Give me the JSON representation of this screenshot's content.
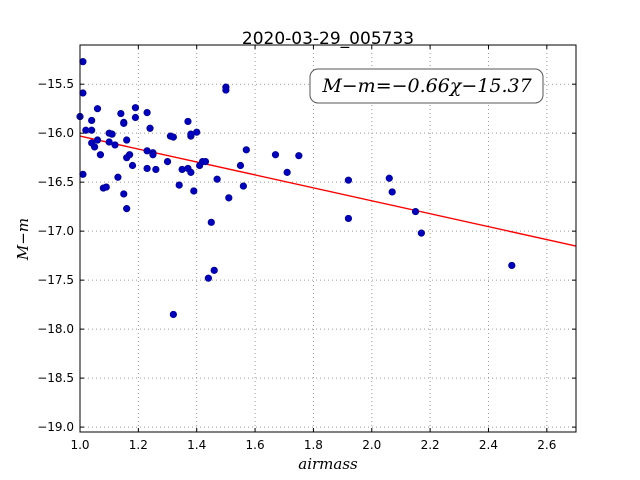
{
  "chart_data": {
    "type": "scatter",
    "title": "2020-03-29_005733",
    "xlabel": "airmass",
    "ylabel": "M−m",
    "xlim": [
      1.0,
      2.7
    ],
    "ylim": [
      -19.05,
      -15.1
    ],
    "y_inverted": false,
    "grid": true,
    "x_ticks": [
      1.0,
      1.2,
      1.4,
      1.6,
      1.8,
      2.0,
      2.2,
      2.4,
      2.6
    ],
    "x_tick_labels": [
      "1.0",
      "1.2",
      "1.4",
      "1.6",
      "1.8",
      "2.0",
      "2.2",
      "2.4",
      "2.6"
    ],
    "y_ticks": [
      -15.5,
      -16.0,
      -16.5,
      -17.0,
      -17.5,
      -18.0,
      -18.5,
      -19.0
    ],
    "y_tick_labels": [
      "−15.5",
      "−16.0",
      "−16.5",
      "−17.0",
      "−17.5",
      "−18.0",
      "−18.5",
      "−19.0"
    ],
    "annotation": "M−m=−0.66χ−15.37",
    "fit": {
      "slope": -0.66,
      "intercept": -15.37
    },
    "colors": {
      "points": "#0000bf",
      "fit_line": "#ff0000",
      "grid": "#9a9a9a"
    },
    "points": [
      [
        1.0,
        -15.83
      ],
      [
        1.01,
        -16.42
      ],
      [
        1.01,
        -15.27
      ],
      [
        1.01,
        -15.59
      ],
      [
        1.02,
        -15.97
      ],
      [
        1.04,
        -15.87
      ],
      [
        1.04,
        -15.97
      ],
      [
        1.04,
        -16.1
      ],
      [
        1.05,
        -16.14
      ],
      [
        1.06,
        -15.75
      ],
      [
        1.06,
        -16.07
      ],
      [
        1.07,
        -16.22
      ],
      [
        1.08,
        -16.56
      ],
      [
        1.09,
        -16.55
      ],
      [
        1.1,
        -16.0
      ],
      [
        1.1,
        -16.09
      ],
      [
        1.11,
        -16.01
      ],
      [
        1.12,
        -16.12
      ],
      [
        1.13,
        -16.45
      ],
      [
        1.14,
        -15.8
      ],
      [
        1.15,
        -15.89
      ],
      [
        1.15,
        -15.9
      ],
      [
        1.15,
        -16.62
      ],
      [
        1.16,
        -16.07
      ],
      [
        1.16,
        -16.25
      ],
      [
        1.17,
        -16.22
      ],
      [
        1.18,
        -16.33
      ],
      [
        1.19,
        -15.74
      ],
      [
        1.19,
        -15.84
      ],
      [
        1.16,
        -16.77
      ],
      [
        1.23,
        -15.79
      ],
      [
        1.23,
        -16.18
      ],
      [
        1.23,
        -16.36
      ],
      [
        1.24,
        -15.95
      ],
      [
        1.25,
        -16.2
      ],
      [
        1.25,
        -16.22
      ],
      [
        1.26,
        -16.37
      ],
      [
        1.3,
        -16.29
      ],
      [
        1.31,
        -16.03
      ],
      [
        1.32,
        -16.04
      ],
      [
        1.32,
        -17.85
      ],
      [
        1.34,
        -16.53
      ],
      [
        1.35,
        -16.37
      ],
      [
        1.37,
        -15.88
      ],
      [
        1.37,
        -16.36
      ],
      [
        1.38,
        -16.03
      ],
      [
        1.38,
        -16.4
      ],
      [
        1.38,
        -16.01
      ],
      [
        1.39,
        -16.59
      ],
      [
        1.4,
        -15.99
      ],
      [
        1.41,
        -16.33
      ],
      [
        1.42,
        -16.29
      ],
      [
        1.43,
        -16.29
      ],
      [
        1.44,
        -17.48
      ],
      [
        1.45,
        -16.91
      ],
      [
        1.46,
        -17.4
      ],
      [
        1.47,
        -16.47
      ],
      [
        1.5,
        -15.53
      ],
      [
        1.5,
        -15.56
      ],
      [
        1.51,
        -16.66
      ],
      [
        1.55,
        -16.33
      ],
      [
        1.56,
        -16.54
      ],
      [
        1.57,
        -16.17
      ],
      [
        1.67,
        -16.22
      ],
      [
        1.71,
        -16.4
      ],
      [
        1.75,
        -16.23
      ],
      [
        1.92,
        -16.87
      ],
      [
        1.92,
        -16.48
      ],
      [
        2.06,
        -16.46
      ],
      [
        2.07,
        -16.6
      ],
      [
        2.15,
        -16.8
      ],
      [
        2.17,
        -17.02
      ],
      [
        2.48,
        -17.35
      ]
    ]
  }
}
